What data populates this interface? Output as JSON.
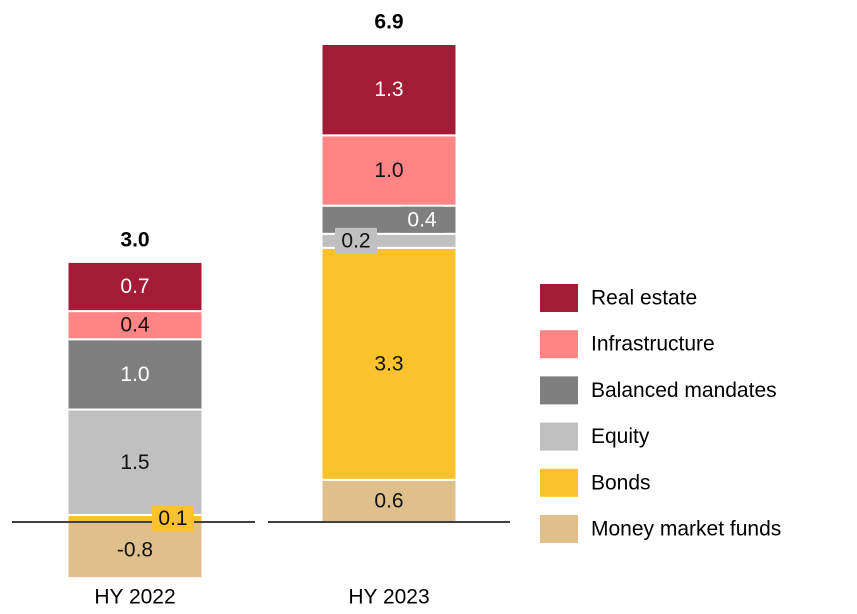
{
  "chart_data": {
    "type": "stacked_bar",
    "categories": [
      "HY 2022",
      "HY 2023"
    ],
    "series": [
      {
        "name": "Money market funds",
        "color": "#dfc08d",
        "values": [
          -0.8,
          0.6
        ],
        "value_labels": [
          "-0.8",
          "0.6"
        ]
      },
      {
        "name": "Bonds",
        "color": "#fcc22d",
        "values": [
          0.1,
          3.3
        ],
        "value_labels": [
          "0.1",
          "3.3"
        ]
      },
      {
        "name": "Equity",
        "color": "#c0c0c0",
        "values": [
          1.5,
          0.2
        ],
        "value_labels": [
          "1.5",
          "0.2"
        ]
      },
      {
        "name": "Balanced mandates",
        "color": "#7f7f7f",
        "values": [
          1.0,
          0.4
        ],
        "value_labels": [
          "1.0",
          "0.4"
        ]
      },
      {
        "name": "Infrastructure",
        "color": "#fe8585",
        "values": [
          0.4,
          1.0
        ],
        "value_labels": [
          "0.4",
          "1.0"
        ]
      },
      {
        "name": "Real estate",
        "color": "#a31c37",
        "values": [
          0.7,
          1.3
        ],
        "value_labels": [
          "0.7",
          "1.3"
        ]
      }
    ],
    "totals": [
      3.0,
      6.9
    ],
    "total_labels": [
      "3.0",
      "6.9"
    ]
  }
}
